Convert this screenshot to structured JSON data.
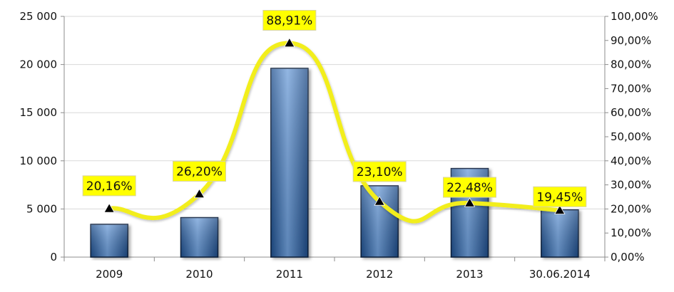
{
  "chart_data": {
    "type": "bar",
    "categories": [
      "2009",
      "2010",
      "2011",
      "2012",
      "2013",
      "30.06.2014"
    ],
    "series": [
      {
        "type": "bar",
        "axis": "left",
        "values": [
          3400,
          4100,
          19600,
          7400,
          9200,
          4900
        ],
        "color": "#2f5f9e"
      },
      {
        "type": "line",
        "axis": "right",
        "smooth": true,
        "marker": "triangle",
        "values": [
          20.16,
          26.2,
          88.91,
          23.1,
          22.48,
          19.45
        ],
        "data_labels": [
          "20,16%",
          "26,20%",
          "88,91%",
          "23,10%",
          "22,48%",
          "19,45%"
        ],
        "color": "#f2ee1a",
        "label_background": "#ffff00"
      }
    ],
    "y_left": {
      "ylim": [
        0,
        25000
      ],
      "ticks": [
        0,
        5000,
        10000,
        15000,
        20000,
        25000
      ],
      "tick_labels": [
        "0",
        "5 000",
        "10 000",
        "15 000",
        "20 000",
        "25 000"
      ]
    },
    "y_right": {
      "ylim": [
        0,
        100
      ],
      "ticks": [
        0,
        10,
        20,
        30,
        40,
        50,
        60,
        70,
        80,
        90,
        100
      ],
      "tick_labels": [
        "0,00%",
        "10,00%",
        "20,00%",
        "30,00%",
        "40,00%",
        "50,00%",
        "60,00%",
        "70,00%",
        "80,00%",
        "90,00%",
        "100,00%"
      ]
    },
    "grid": true
  }
}
